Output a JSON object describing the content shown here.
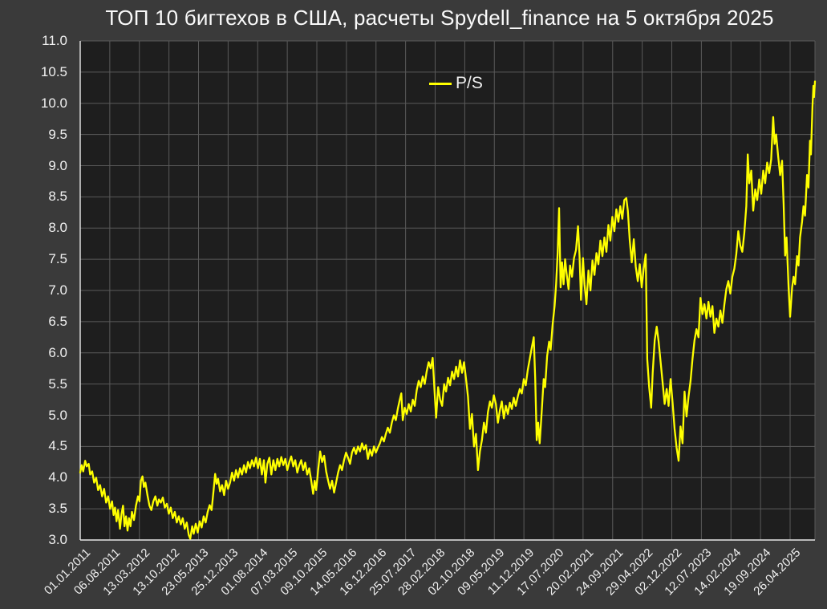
{
  "title": "ТОП 10 бигтехов в США, расчеты Spydell_finance на 5 октября 2025",
  "legend": {
    "label": "P/S"
  },
  "colors": {
    "page_bg": "#3a3a3a",
    "plot_bg": "#1e1e1e",
    "grid": "#5a5a5a",
    "axis": "#e8e8e8",
    "series": "#ffff00",
    "text": "#f0f0f0",
    "title": "#fafafa"
  },
  "chart_data": {
    "type": "line",
    "title": "ТОП 10 бигтехов в США, расчеты Spydell_finance на 5 октября 2025",
    "xlabel": "",
    "ylabel": "",
    "grid": true,
    "legend_position": "top-center",
    "series": [
      {
        "name": "P/S",
        "color": "#ffff00"
      }
    ],
    "ylim": [
      3.0,
      11.0
    ],
    "y_tick_step": 0.5,
    "y_tick_labels": [
      "3.0",
      "3.5",
      "4.0",
      "4.5",
      "5.0",
      "5.5",
      "6.0",
      "6.5",
      "7.0",
      "7.5",
      "8.0",
      "8.5",
      "9.0",
      "9.5",
      "10.0",
      "10.5",
      "11.0"
    ],
    "x_tick_labels": [
      "01.01.2011",
      "06.08.2011",
      "13.03.2012",
      "13.10.2012",
      "23.05.2013",
      "25.12.2013",
      "01.08.2014",
      "07.03.2015",
      "09.10.2015",
      "14.05.2016",
      "16.12.2016",
      "25.07.2017",
      "28.02.2018",
      "02.10.2018",
      "09.05.2019",
      "11.12.2019",
      "17.07.2020",
      "20.02.2021",
      "24.09.2021",
      "29.04.2022",
      "02.12.2022",
      "12.07.2023",
      "14.02.2024",
      "19.09.2024",
      "26.04.2025"
    ],
    "xlim_years": [
      2011.0,
      2025.76
    ],
    "x_tick_interval_years": 0.5942,
    "points": [
      [
        2011.0,
        4.08
      ],
      [
        2011.03,
        4.2
      ],
      [
        2011.06,
        4.1
      ],
      [
        2011.1,
        4.27
      ],
      [
        2011.13,
        4.18
      ],
      [
        2011.17,
        4.22
      ],
      [
        2011.2,
        4.05
      ],
      [
        2011.24,
        4.1
      ],
      [
        2011.28,
        3.92
      ],
      [
        2011.32,
        4.0
      ],
      [
        2011.36,
        3.8
      ],
      [
        2011.4,
        3.88
      ],
      [
        2011.44,
        3.7
      ],
      [
        2011.48,
        3.82
      ],
      [
        2011.52,
        3.6
      ],
      [
        2011.56,
        3.7
      ],
      [
        2011.6,
        3.5
      ],
      [
        2011.64,
        3.62
      ],
      [
        2011.67,
        3.4
      ],
      [
        2011.7,
        3.52
      ],
      [
        2011.73,
        3.3
      ],
      [
        2011.76,
        3.48
      ],
      [
        2011.8,
        3.18
      ],
      [
        2011.83,
        3.42
      ],
      [
        2011.86,
        3.55
      ],
      [
        2011.89,
        3.22
      ],
      [
        2011.92,
        3.38
      ],
      [
        2011.95,
        3.15
      ],
      [
        2011.98,
        3.35
      ],
      [
        2012.01,
        3.22
      ],
      [
        2012.04,
        3.45
      ],
      [
        2012.08,
        3.32
      ],
      [
        2012.12,
        3.55
      ],
      [
        2012.16,
        3.7
      ],
      [
        2012.19,
        3.62
      ],
      [
        2012.22,
        3.95
      ],
      [
        2012.25,
        4.02
      ],
      [
        2012.28,
        3.85
      ],
      [
        2012.31,
        3.92
      ],
      [
        2012.35,
        3.72
      ],
      [
        2012.39,
        3.55
      ],
      [
        2012.43,
        3.48
      ],
      [
        2012.47,
        3.62
      ],
      [
        2012.51,
        3.7
      ],
      [
        2012.55,
        3.55
      ],
      [
        2012.58,
        3.65
      ],
      [
        2012.62,
        3.6
      ],
      [
        2012.66,
        3.68
      ],
      [
        2012.7,
        3.52
      ],
      [
        2012.74,
        3.58
      ],
      [
        2012.78,
        3.42
      ],
      [
        2012.82,
        3.52
      ],
      [
        2012.86,
        3.35
      ],
      [
        2012.9,
        3.45
      ],
      [
        2012.94,
        3.28
      ],
      [
        2012.98,
        3.38
      ],
      [
        2013.02,
        3.25
      ],
      [
        2013.06,
        3.35
      ],
      [
        2013.1,
        3.18
      ],
      [
        2013.14,
        3.28
      ],
      [
        2013.18,
        3.08
      ],
      [
        2013.21,
        3.02
      ],
      [
        2013.25,
        3.22
      ],
      [
        2013.28,
        3.1
      ],
      [
        2013.32,
        3.26
      ],
      [
        2013.36,
        3.12
      ],
      [
        2013.4,
        3.3
      ],
      [
        2013.44,
        3.2
      ],
      [
        2013.48,
        3.38
      ],
      [
        2013.52,
        3.28
      ],
      [
        2013.56,
        3.45
      ],
      [
        2013.6,
        3.56
      ],
      [
        2013.64,
        3.48
      ],
      [
        2013.68,
        3.8
      ],
      [
        2013.71,
        4.06
      ],
      [
        2013.74,
        3.9
      ],
      [
        2013.77,
        3.98
      ],
      [
        2013.81,
        3.78
      ],
      [
        2013.85,
        3.88
      ],
      [
        2013.89,
        3.72
      ],
      [
        2013.93,
        3.95
      ],
      [
        2013.97,
        3.82
      ],
      [
        2014.01,
        3.92
      ],
      [
        2014.05,
        4.08
      ],
      [
        2014.09,
        3.95
      ],
      [
        2014.13,
        4.12
      ],
      [
        2014.17,
        4.0
      ],
      [
        2014.21,
        4.15
      ],
      [
        2014.25,
        4.05
      ],
      [
        2014.29,
        4.2
      ],
      [
        2014.33,
        4.08
      ],
      [
        2014.37,
        4.25
      ],
      [
        2014.41,
        4.15
      ],
      [
        2014.45,
        4.28
      ],
      [
        2014.49,
        4.18
      ],
      [
        2014.53,
        4.32
      ],
      [
        2014.57,
        4.15
      ],
      [
        2014.61,
        4.3
      ],
      [
        2014.65,
        4.05
      ],
      [
        2014.69,
        4.28
      ],
      [
        2014.72,
        3.92
      ],
      [
        2014.76,
        4.22
      ],
      [
        2014.8,
        4.32
      ],
      [
        2014.84,
        4.05
      ],
      [
        2014.88,
        4.28
      ],
      [
        2014.92,
        4.12
      ],
      [
        2014.96,
        4.3
      ],
      [
        2015.0,
        4.18
      ],
      [
        2015.04,
        4.33
      ],
      [
        2015.08,
        4.2
      ],
      [
        2015.12,
        4.3
      ],
      [
        2015.16,
        4.12
      ],
      [
        2015.2,
        4.25
      ],
      [
        2015.24,
        4.34
      ],
      [
        2015.28,
        4.18
      ],
      [
        2015.32,
        4.28
      ],
      [
        2015.36,
        4.08
      ],
      [
        2015.4,
        4.2
      ],
      [
        2015.44,
        4.28
      ],
      [
        2015.48,
        4.12
      ],
      [
        2015.52,
        4.24
      ],
      [
        2015.56,
        4.05
      ],
      [
        2015.6,
        4.15
      ],
      [
        2015.64,
        3.95
      ],
      [
        2015.68,
        3.74
      ],
      [
        2015.71,
        3.95
      ],
      [
        2015.74,
        3.8
      ],
      [
        2015.78,
        4.12
      ],
      [
        2015.82,
        4.42
      ],
      [
        2015.86,
        4.25
      ],
      [
        2015.9,
        4.35
      ],
      [
        2015.94,
        4.1
      ],
      [
        2015.98,
        3.95
      ],
      [
        2016.02,
        3.82
      ],
      [
        2016.06,
        3.95
      ],
      [
        2016.1,
        3.76
      ],
      [
        2016.14,
        3.92
      ],
      [
        2016.18,
        4.08
      ],
      [
        2016.22,
        4.2
      ],
      [
        2016.26,
        4.12
      ],
      [
        2016.3,
        4.28
      ],
      [
        2016.34,
        4.4
      ],
      [
        2016.38,
        4.32
      ],
      [
        2016.42,
        4.22
      ],
      [
        2016.46,
        4.4
      ],
      [
        2016.5,
        4.48
      ],
      [
        2016.54,
        4.38
      ],
      [
        2016.58,
        4.5
      ],
      [
        2016.62,
        4.42
      ],
      [
        2016.66,
        4.55
      ],
      [
        2016.7,
        4.45
      ],
      [
        2016.74,
        4.52
      ],
      [
        2016.78,
        4.3
      ],
      [
        2016.82,
        4.45
      ],
      [
        2016.86,
        4.35
      ],
      [
        2016.9,
        4.5
      ],
      [
        2016.94,
        4.4
      ],
      [
        2016.98,
        4.48
      ],
      [
        2017.02,
        4.55
      ],
      [
        2017.06,
        4.65
      ],
      [
        2017.1,
        4.58
      ],
      [
        2017.14,
        4.7
      ],
      [
        2017.18,
        4.8
      ],
      [
        2017.22,
        4.72
      ],
      [
        2017.26,
        4.88
      ],
      [
        2017.3,
        5.0
      ],
      [
        2017.34,
        4.92
      ],
      [
        2017.38,
        5.1
      ],
      [
        2017.42,
        5.25
      ],
      [
        2017.45,
        5.35
      ],
      [
        2017.48,
        4.92
      ],
      [
        2017.52,
        5.12
      ],
      [
        2017.56,
        5.02
      ],
      [
        2017.6,
        5.18
      ],
      [
        2017.64,
        5.06
      ],
      [
        2017.68,
        5.25
      ],
      [
        2017.72,
        5.15
      ],
      [
        2017.76,
        5.4
      ],
      [
        2017.8,
        5.55
      ],
      [
        2017.84,
        5.45
      ],
      [
        2017.88,
        5.62
      ],
      [
        2017.92,
        5.5
      ],
      [
        2017.96,
        5.7
      ],
      [
        2018.0,
        5.85
      ],
      [
        2018.04,
        5.75
      ],
      [
        2018.08,
        5.92
      ],
      [
        2018.12,
        5.35
      ],
      [
        2018.15,
        4.96
      ],
      [
        2018.19,
        5.45
      ],
      [
        2018.23,
        5.25
      ],
      [
        2018.27,
        5.15
      ],
      [
        2018.31,
        5.5
      ],
      [
        2018.35,
        5.38
      ],
      [
        2018.39,
        5.6
      ],
      [
        2018.43,
        5.48
      ],
      [
        2018.47,
        5.7
      ],
      [
        2018.51,
        5.58
      ],
      [
        2018.55,
        5.78
      ],
      [
        2018.59,
        5.62
      ],
      [
        2018.63,
        5.88
      ],
      [
        2018.67,
        5.68
      ],
      [
        2018.71,
        5.85
      ],
      [
        2018.75,
        5.58
      ],
      [
        2018.79,
        5.3
      ],
      [
        2018.83,
        4.78
      ],
      [
        2018.87,
        5.02
      ],
      [
        2018.91,
        4.5
      ],
      [
        2018.95,
        4.7
      ],
      [
        2018.99,
        4.12
      ],
      [
        2019.03,
        4.42
      ],
      [
        2019.07,
        4.6
      ],
      [
        2019.11,
        4.88
      ],
      [
        2019.15,
        4.72
      ],
      [
        2019.19,
        5.05
      ],
      [
        2019.23,
        5.22
      ],
      [
        2019.27,
        5.12
      ],
      [
        2019.31,
        5.32
      ],
      [
        2019.35,
        5.18
      ],
      [
        2019.39,
        4.88
      ],
      [
        2019.43,
        5.08
      ],
      [
        2019.47,
        5.22
      ],
      [
        2019.51,
        4.95
      ],
      [
        2019.55,
        5.15
      ],
      [
        2019.59,
        5.02
      ],
      [
        2019.63,
        5.2
      ],
      [
        2019.67,
        5.1
      ],
      [
        2019.71,
        5.28
      ],
      [
        2019.75,
        5.15
      ],
      [
        2019.79,
        5.3
      ],
      [
        2019.83,
        5.42
      ],
      [
        2019.87,
        5.35
      ],
      [
        2019.91,
        5.58
      ],
      [
        2019.95,
        5.48
      ],
      [
        2019.99,
        5.72
      ],
      [
        2020.03,
        5.9
      ],
      [
        2020.07,
        6.08
      ],
      [
        2020.11,
        6.25
      ],
      [
        2020.14,
        5.6
      ],
      [
        2020.17,
        4.6
      ],
      [
        2020.2,
        4.88
      ],
      [
        2020.23,
        4.55
      ],
      [
        2020.27,
        5.05
      ],
      [
        2020.31,
        5.58
      ],
      [
        2020.34,
        5.45
      ],
      [
        2020.38,
        5.95
      ],
      [
        2020.42,
        6.18
      ],
      [
        2020.45,
        6.05
      ],
      [
        2020.49,
        6.45
      ],
      [
        2020.53,
        6.75
      ],
      [
        2020.56,
        7.1
      ],
      [
        2020.59,
        7.6
      ],
      [
        2020.62,
        8.32
      ],
      [
        2020.65,
        7.05
      ],
      [
        2020.68,
        7.45
      ],
      [
        2020.71,
        7.1
      ],
      [
        2020.74,
        7.5
      ],
      [
        2020.77,
        7.28
      ],
      [
        2020.81,
        7.02
      ],
      [
        2020.84,
        7.4
      ],
      [
        2020.88,
        7.22
      ],
      [
        2020.92,
        7.52
      ],
      [
        2020.96,
        7.65
      ],
      [
        2021.0,
        8.03
      ],
      [
        2021.03,
        7.55
      ],
      [
        2021.06,
        6.85
      ],
      [
        2021.1,
        7.52
      ],
      [
        2021.13,
        7.1
      ],
      [
        2021.17,
        6.78
      ],
      [
        2021.21,
        7.32
      ],
      [
        2021.25,
        7.0
      ],
      [
        2021.29,
        7.48
      ],
      [
        2021.33,
        7.25
      ],
      [
        2021.37,
        7.6
      ],
      [
        2021.41,
        7.42
      ],
      [
        2021.45,
        7.8
      ],
      [
        2021.49,
        7.55
      ],
      [
        2021.53,
        7.85
      ],
      [
        2021.57,
        7.62
      ],
      [
        2021.61,
        8.05
      ],
      [
        2021.65,
        7.8
      ],
      [
        2021.69,
        8.18
      ],
      [
        2021.73,
        7.95
      ],
      [
        2021.77,
        8.3
      ],
      [
        2021.81,
        8.1
      ],
      [
        2021.85,
        8.35
      ],
      [
        2021.89,
        8.15
      ],
      [
        2021.93,
        8.45
      ],
      [
        2021.97,
        8.48
      ],
      [
        2022.0,
        8.28
      ],
      [
        2022.04,
        7.8
      ],
      [
        2022.08,
        7.45
      ],
      [
        2022.12,
        7.82
      ],
      [
        2022.16,
        7.38
      ],
      [
        2022.2,
        7.15
      ],
      [
        2022.24,
        7.42
      ],
      [
        2022.28,
        7.05
      ],
      [
        2022.32,
        7.35
      ],
      [
        2022.36,
        7.58
      ],
      [
        2022.39,
        5.9
      ],
      [
        2022.43,
        5.45
      ],
      [
        2022.47,
        5.12
      ],
      [
        2022.5,
        5.68
      ],
      [
        2022.54,
        6.2
      ],
      [
        2022.58,
        6.42
      ],
      [
        2022.62,
        6.18
      ],
      [
        2022.66,
        5.85
      ],
      [
        2022.7,
        5.52
      ],
      [
        2022.74,
        5.18
      ],
      [
        2022.78,
        5.42
      ],
      [
        2022.82,
        5.15
      ],
      [
        2022.86,
        5.58
      ],
      [
        2022.9,
        5.2
      ],
      [
        2022.94,
        4.78
      ],
      [
        2022.98,
        4.48
      ],
      [
        2023.02,
        4.27
      ],
      [
        2023.06,
        4.82
      ],
      [
        2023.1,
        4.55
      ],
      [
        2023.14,
        5.38
      ],
      [
        2023.18,
        4.98
      ],
      [
        2023.22,
        5.3
      ],
      [
        2023.26,
        5.55
      ],
      [
        2023.3,
        5.9
      ],
      [
        2023.34,
        6.2
      ],
      [
        2023.38,
        6.38
      ],
      [
        2023.42,
        6.25
      ],
      [
        2023.46,
        6.88
      ],
      [
        2023.5,
        6.62
      ],
      [
        2023.54,
        6.78
      ],
      [
        2023.58,
        6.55
      ],
      [
        2023.62,
        6.82
      ],
      [
        2023.66,
        6.58
      ],
      [
        2023.7,
        6.75
      ],
      [
        2023.74,
        6.32
      ],
      [
        2023.78,
        6.55
      ],
      [
        2023.82,
        6.42
      ],
      [
        2023.86,
        6.68
      ],
      [
        2023.9,
        6.48
      ],
      [
        2023.94,
        6.78
      ],
      [
        2023.98,
        7.02
      ],
      [
        2024.02,
        7.15
      ],
      [
        2024.06,
        6.95
      ],
      [
        2024.1,
        7.22
      ],
      [
        2024.14,
        7.35
      ],
      [
        2024.18,
        7.58
      ],
      [
        2024.22,
        7.95
      ],
      [
        2024.26,
        7.72
      ],
      [
        2024.3,
        7.62
      ],
      [
        2024.34,
        7.92
      ],
      [
        2024.38,
        8.35
      ],
      [
        2024.41,
        9.18
      ],
      [
        2024.44,
        8.72
      ],
      [
        2024.48,
        8.92
      ],
      [
        2024.52,
        8.28
      ],
      [
        2024.56,
        8.62
      ],
      [
        2024.6,
        8.45
      ],
      [
        2024.64,
        8.78
      ],
      [
        2024.68,
        8.55
      ],
      [
        2024.72,
        8.92
      ],
      [
        2024.76,
        8.72
      ],
      [
        2024.8,
        9.05
      ],
      [
        2024.84,
        8.88
      ],
      [
        2024.88,
        9.1
      ],
      [
        2024.92,
        9.78
      ],
      [
        2024.95,
        9.35
      ],
      [
        2024.98,
        9.5
      ],
      [
        2025.02,
        9.15
      ],
      [
        2025.06,
        8.85
      ],
      [
        2025.1,
        9.08
      ],
      [
        2025.13,
        8.4
      ],
      [
        2025.16,
        7.56
      ],
      [
        2025.19,
        7.85
      ],
      [
        2025.23,
        7.05
      ],
      [
        2025.26,
        6.58
      ],
      [
        2025.3,
        7.05
      ],
      [
        2025.33,
        7.22
      ],
      [
        2025.36,
        7.1
      ],
      [
        2025.4,
        7.55
      ],
      [
        2025.43,
        7.4
      ],
      [
        2025.46,
        7.85
      ],
      [
        2025.5,
        8.1
      ],
      [
        2025.53,
        8.35
      ],
      [
        2025.56,
        8.2
      ],
      [
        2025.6,
        8.85
      ],
      [
        2025.63,
        8.65
      ],
      [
        2025.66,
        9.4
      ],
      [
        2025.68,
        9.18
      ],
      [
        2025.71,
        9.95
      ],
      [
        2025.73,
        10.28
      ],
      [
        2025.74,
        10.1
      ],
      [
        2025.76,
        10.35
      ]
    ]
  }
}
